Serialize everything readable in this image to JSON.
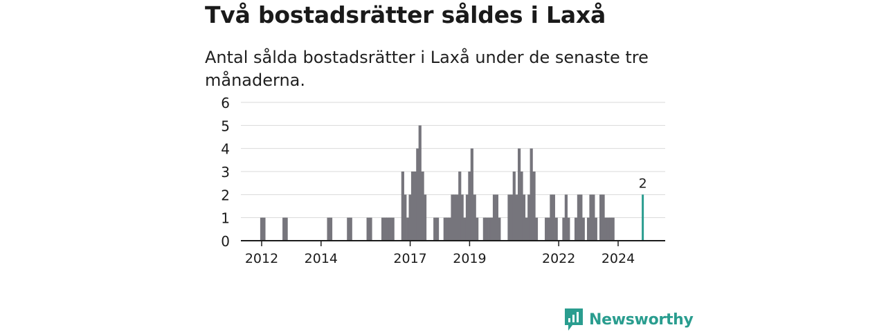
{
  "title": "Två bostadsrätter såldes i Laxå",
  "subtitle": "Antal sålda bostadsrätter i Laxå under de senaste tre månaderna.",
  "brand": {
    "name": "Newsworthy",
    "color": "#2a9d8f",
    "icon": "newsworthy-logo-icon"
  },
  "colors": {
    "bar": "#76757c",
    "highlight": "#2a9d8f",
    "grid": "#d9d9d9",
    "axis": "#1a1a1a"
  },
  "chart_data": {
    "type": "bar",
    "title": "",
    "xlabel": "",
    "ylabel": "",
    "ylim": [
      0,
      6
    ],
    "yticks": [
      0,
      1,
      2,
      3,
      4,
      5,
      6
    ],
    "xticks": [
      {
        "label": "2012",
        "x": 2012.0
      },
      {
        "label": "2014",
        "x": 2014.0
      },
      {
        "label": "2017",
        "x": 2017.0
      },
      {
        "label": "2019",
        "x": 2019.0
      },
      {
        "label": "2022",
        "x": 2022.0
      },
      {
        "label": "2024",
        "x": 2024.0
      }
    ],
    "xlim": [
      2011.3,
      2025.7
    ],
    "highlight_label": "2",
    "bars": [
      {
        "x": 2012.0,
        "value": 1
      },
      {
        "x": 2012.08,
        "value": 1
      },
      {
        "x": 2012.75,
        "value": 1
      },
      {
        "x": 2012.83,
        "value": 1
      },
      {
        "x": 2014.25,
        "value": 1
      },
      {
        "x": 2014.33,
        "value": 1
      },
      {
        "x": 2014.92,
        "value": 1
      },
      {
        "x": 2015.0,
        "value": 1
      },
      {
        "x": 2015.58,
        "value": 1
      },
      {
        "x": 2015.67,
        "value": 1
      },
      {
        "x": 2016.08,
        "value": 1
      },
      {
        "x": 2016.17,
        "value": 1
      },
      {
        "x": 2016.25,
        "value": 1
      },
      {
        "x": 2016.33,
        "value": 1
      },
      {
        "x": 2016.42,
        "value": 1
      },
      {
        "x": 2016.75,
        "value": 3
      },
      {
        "x": 2016.83,
        "value": 2
      },
      {
        "x": 2016.92,
        "value": 1
      },
      {
        "x": 2017.0,
        "value": 2
      },
      {
        "x": 2017.08,
        "value": 3
      },
      {
        "x": 2017.17,
        "value": 3
      },
      {
        "x": 2017.25,
        "value": 4
      },
      {
        "x": 2017.33,
        "value": 5
      },
      {
        "x": 2017.42,
        "value": 3
      },
      {
        "x": 2017.5,
        "value": 2
      },
      {
        "x": 2017.83,
        "value": 1
      },
      {
        "x": 2017.92,
        "value": 1
      },
      {
        "x": 2018.17,
        "value": 1
      },
      {
        "x": 2018.25,
        "value": 1
      },
      {
        "x": 2018.33,
        "value": 1
      },
      {
        "x": 2018.42,
        "value": 2
      },
      {
        "x": 2018.5,
        "value": 2
      },
      {
        "x": 2018.58,
        "value": 2
      },
      {
        "x": 2018.67,
        "value": 3
      },
      {
        "x": 2018.75,
        "value": 2
      },
      {
        "x": 2018.83,
        "value": 1
      },
      {
        "x": 2018.92,
        "value": 2
      },
      {
        "x": 2019.0,
        "value": 3
      },
      {
        "x": 2019.08,
        "value": 4
      },
      {
        "x": 2019.17,
        "value": 2
      },
      {
        "x": 2019.25,
        "value": 1
      },
      {
        "x": 2019.5,
        "value": 1
      },
      {
        "x": 2019.58,
        "value": 1
      },
      {
        "x": 2019.67,
        "value": 1
      },
      {
        "x": 2019.75,
        "value": 1
      },
      {
        "x": 2019.83,
        "value": 2
      },
      {
        "x": 2019.92,
        "value": 2
      },
      {
        "x": 2020.0,
        "value": 1
      },
      {
        "x": 2020.33,
        "value": 2
      },
      {
        "x": 2020.42,
        "value": 2
      },
      {
        "x": 2020.5,
        "value": 3
      },
      {
        "x": 2020.58,
        "value": 2
      },
      {
        "x": 2020.67,
        "value": 4
      },
      {
        "x": 2020.75,
        "value": 3
      },
      {
        "x": 2020.83,
        "value": 2
      },
      {
        "x": 2020.92,
        "value": 1
      },
      {
        "x": 2021.0,
        "value": 2
      },
      {
        "x": 2021.08,
        "value": 4
      },
      {
        "x": 2021.17,
        "value": 3
      },
      {
        "x": 2021.25,
        "value": 1
      },
      {
        "x": 2021.58,
        "value": 1
      },
      {
        "x": 2021.67,
        "value": 1
      },
      {
        "x": 2021.75,
        "value": 2
      },
      {
        "x": 2021.83,
        "value": 2
      },
      {
        "x": 2021.92,
        "value": 1
      },
      {
        "x": 2022.17,
        "value": 1
      },
      {
        "x": 2022.25,
        "value": 2
      },
      {
        "x": 2022.33,
        "value": 1
      },
      {
        "x": 2022.58,
        "value": 1
      },
      {
        "x": 2022.67,
        "value": 2
      },
      {
        "x": 2022.75,
        "value": 2
      },
      {
        "x": 2022.83,
        "value": 1
      },
      {
        "x": 2023.0,
        "value": 1
      },
      {
        "x": 2023.08,
        "value": 2
      },
      {
        "x": 2023.17,
        "value": 2
      },
      {
        "x": 2023.25,
        "value": 1
      },
      {
        "x": 2023.42,
        "value": 2
      },
      {
        "x": 2023.5,
        "value": 2
      },
      {
        "x": 2023.58,
        "value": 1
      },
      {
        "x": 2023.67,
        "value": 1
      },
      {
        "x": 2023.75,
        "value": 1
      },
      {
        "x": 2023.83,
        "value": 1
      },
      {
        "x": 2024.83,
        "value": 2,
        "highlight": true
      }
    ]
  }
}
